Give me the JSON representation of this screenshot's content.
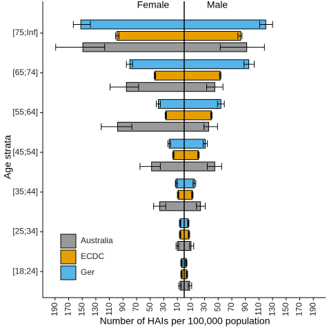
{
  "chart_data": {
    "type": "pyramid",
    "left_label": "Female",
    "right_label": "Male",
    "x_label": "Number of HAIs per 100,000 population",
    "y_label": "Age strata",
    "categories": [
      "[75;Inf]",
      "[65;74]",
      "[55;64]",
      "[45;54]",
      "[35;44]",
      "[25;34]",
      "[18;24]"
    ],
    "xlim": [
      -208,
      208
    ],
    "xticks": [
      {
        "value": -190,
        "label": "190"
      },
      {
        "value": -170,
        "label": "170"
      },
      {
        "value": -150,
        "label": "150"
      },
      {
        "value": -130,
        "label": "130"
      },
      {
        "value": -110,
        "label": "110"
      },
      {
        "value": -90,
        "label": "90"
      },
      {
        "value": -70,
        "label": "70"
      },
      {
        "value": -50,
        "label": "50"
      },
      {
        "value": -30,
        "label": "30"
      },
      {
        "value": -10,
        "label": "10"
      },
      10,
      30,
      50,
      70,
      90,
      110,
      130,
      150,
      170,
      190
    ],
    "legend": "bottom-left",
    "series": [
      {
        "name": "Ger",
        "color": "#56b4e9",
        "female": [
          152,
          80,
          38,
          22,
          12,
          6,
          4
        ],
        "male": [
          120,
          95,
          54,
          31,
          15,
          6,
          3
        ],
        "female_err": [
          [
            138,
            163
          ],
          [
            76,
            85
          ],
          [
            35,
            41
          ],
          [
            20,
            24
          ],
          [
            10,
            13
          ],
          [
            5,
            7
          ],
          [
            3,
            5
          ]
        ],
        "male_err": [
          [
            111,
            130
          ],
          [
            88,
            103
          ],
          [
            49,
            59
          ],
          [
            28,
            34
          ],
          [
            13,
            17
          ],
          [
            5,
            7
          ],
          [
            2,
            4
          ]
        ]
      },
      {
        "name": "ECDC",
        "color": "#e69f00",
        "female": [
          99,
          43,
          27,
          16,
          9,
          6,
          4
        ],
        "male": [
          83,
          53,
          40,
          21,
          12,
          7,
          4
        ],
        "female_err": [
          [
            96,
            101
          ],
          [
            42,
            44
          ],
          [
            26,
            28
          ],
          [
            15,
            17
          ],
          [
            8,
            10
          ],
          [
            5,
            7
          ],
          [
            3,
            5
          ]
        ],
        "male_err": [
          [
            79,
            85
          ],
          [
            52,
            54
          ],
          [
            39,
            41
          ],
          [
            20,
            22
          ],
          [
            11,
            13
          ],
          [
            6,
            8
          ],
          [
            3,
            5
          ]
        ]
      },
      {
        "name": "Australia",
        "color": "#999999",
        "female": [
          149,
          85,
          98,
          48,
          36,
          10,
          6
        ],
        "male": [
          92,
          45,
          36,
          45,
          24,
          10,
          8
        ],
        "female_err": [
          [
            117,
            189
          ],
          [
            67,
            109
          ],
          [
            77,
            122
          ],
          [
            35,
            65
          ],
          [
            27,
            45
          ],
          [
            8,
            12
          ],
          [
            4,
            8
          ]
        ],
        "male_err": [
          [
            53,
            118
          ],
          [
            33,
            57
          ],
          [
            29,
            49
          ],
          [
            34,
            55
          ],
          [
            18,
            31
          ],
          [
            8,
            14
          ],
          [
            6,
            11
          ]
        ]
      }
    ]
  }
}
